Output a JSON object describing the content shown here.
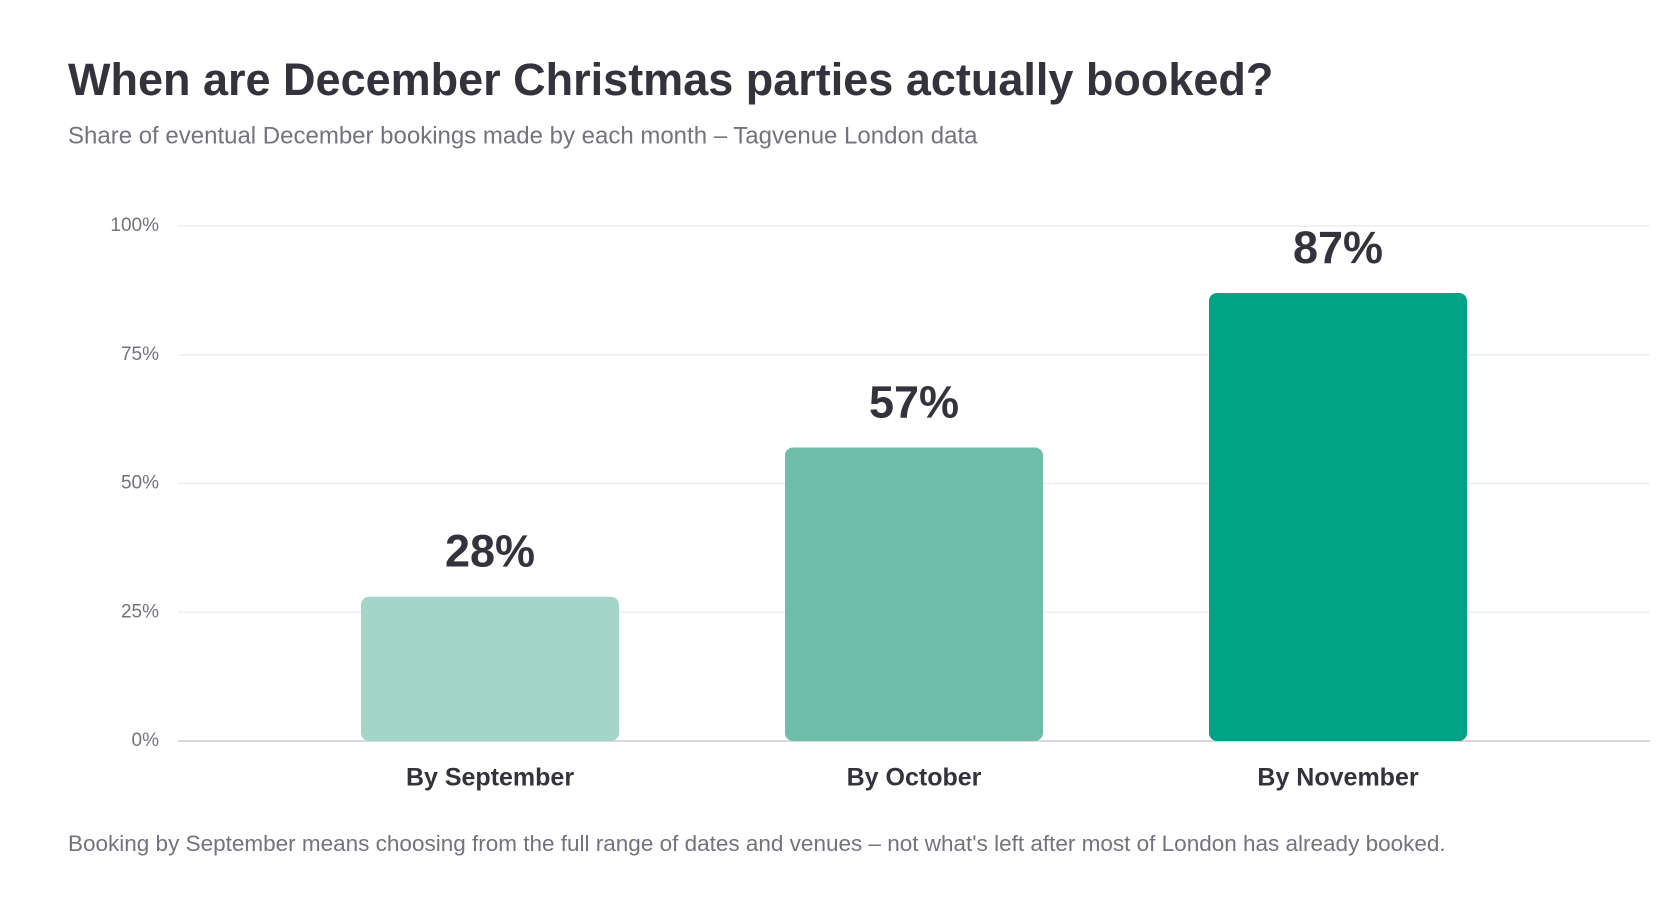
{
  "chart_data": {
    "type": "bar",
    "title": "When are December Christmas parties actually booked?",
    "subtitle": "Share of eventual December bookings made by each month – Tagvenue London data",
    "categories": [
      "By September",
      "By October",
      "By November"
    ],
    "values": [
      28,
      57,
      87
    ],
    "value_labels": [
      "28%",
      "57%",
      "87%"
    ],
    "colors": [
      "#a3d6c9",
      "#6dbda9",
      "#00a386"
    ],
    "ylim": [
      0,
      100
    ],
    "yticks": [
      {
        "value": 0,
        "label": "0%"
      },
      {
        "value": 25,
        "label": "25%"
      },
      {
        "value": 50,
        "label": "50%"
      },
      {
        "value": 75,
        "label": "75%"
      },
      {
        "value": 100,
        "label": "100%"
      }
    ],
    "grid": true,
    "annotation": "Booking by September means choosing from the full range of dates and venues – not what's left after most of London has already booked."
  }
}
